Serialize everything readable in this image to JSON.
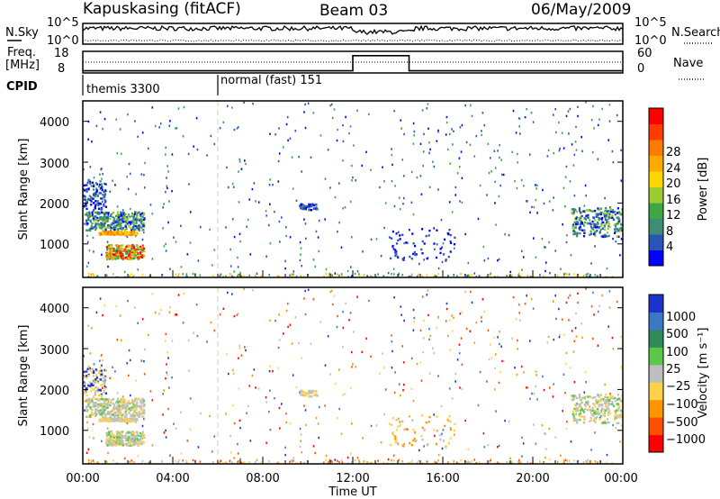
{
  "header": {
    "station": "Kapuskasing (fitACF)",
    "beam": "Beam 03",
    "date": "06/May/2009"
  },
  "chart_data": [
    {
      "type": "line",
      "panel": "noise",
      "left_label": "N.Sky",
      "right_label": "N.Search",
      "left_ticks": [
        "10^5",
        "10^0"
      ],
      "right_ticks": [
        "10^5",
        "10^0"
      ],
      "yscale": "log"
    },
    {
      "type": "line",
      "panel": "frequency",
      "left_label_top": "Freq.",
      "left_label_bottom": "[MHz]",
      "right_label": "Nave",
      "left_ticks": [
        "18",
        "8"
      ],
      "right_ticks": [
        "60",
        "0"
      ],
      "series": [
        {
          "name": "Freq.",
          "x": [
            0,
            12,
            12,
            14.5,
            14.5,
            24
          ],
          "values": [
            9,
            9,
            16,
            16,
            9,
            9
          ]
        },
        {
          "name": "Nave",
          "x": [
            0,
            12,
            12,
            14.5,
            14.5,
            24
          ],
          "values": [
            30,
            30,
            30,
            30,
            30,
            30
          ]
        }
      ]
    },
    {
      "type": "table",
      "panel": "cpid",
      "label": "CPID",
      "segments": [
        {
          "name": "themis 3300",
          "start_hour": 0,
          "end_hour": 6
        },
        {
          "name": "normal (fast) 151",
          "start_hour": 6,
          "end_hour": 24
        }
      ]
    },
    {
      "type": "heatmap",
      "panel": "power",
      "ylabel": "Slant Range [km]",
      "ylim": [
        180,
        4500
      ],
      "yticks": [
        "1000",
        "2000",
        "3000",
        "4000"
      ],
      "xlim": [
        0,
        24
      ],
      "colorbar_label": "Power [dB]",
      "colorbar_ticks": [
        "4",
        "8",
        "12",
        "16",
        "20",
        "24",
        "28"
      ],
      "colors": [
        "#0000ff",
        "#2a55b8",
        "#3c8c78",
        "#3fa645",
        "#9acd32",
        "#ffd700",
        "#ffaa00",
        "#ff7a00",
        "#ff3c00",
        "#ff0000"
      ],
      "regions": [
        {
          "x": [
            0.0,
            2.7
          ],
          "y": [
            1280,
            1850
          ],
          "value": "green-blue"
        },
        {
          "x": [
            0.7,
            2.4
          ],
          "y": [
            1240,
            1330
          ],
          "value": "orange"
        },
        {
          "x": [
            1.0,
            2.6
          ],
          "y": [
            650,
            1000
          ],
          "value": "red-green"
        },
        {
          "x": [
            21.8,
            24.0
          ],
          "y": [
            1200,
            1900
          ],
          "value": "green-blue"
        },
        {
          "x": [
            0.0,
            24.0
          ],
          "y": [
            180,
            300
          ],
          "value": "ground"
        },
        {
          "x": [
            9.5,
            10.5
          ],
          "y": [
            1850,
            2000
          ],
          "value": "blue"
        }
      ]
    },
    {
      "type": "heatmap",
      "panel": "velocity",
      "ylabel": "Slant Range [km]",
      "ylim": [
        180,
        4500
      ],
      "yticks": [
        "1000",
        "2000",
        "3000",
        "4000"
      ],
      "xlabel": "Time UT",
      "xticks": [
        "00:00",
        "04:00",
        "08:00",
        "12:00",
        "16:00",
        "20:00",
        "00:00"
      ],
      "xlim": [
        0,
        24
      ],
      "colorbar_label": "Velocity [m s⁻¹]",
      "colorbar_ticks": [
        "1000",
        "500",
        "100",
        "25",
        "−25",
        "−100",
        "−500",
        "−1000"
      ],
      "colors": [
        "#1a33cc",
        "#3c78c8",
        "#2e8b57",
        "#5cc84a",
        "#bebebe",
        "#ffd24a",
        "#ff9600",
        "#ff5000",
        "#ff0000"
      ]
    }
  ]
}
